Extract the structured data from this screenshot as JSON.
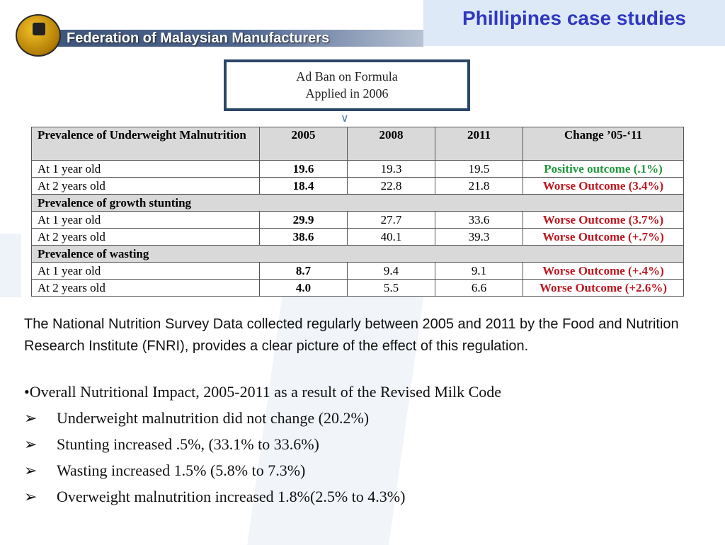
{
  "header": {
    "org_name": "Federation of Malaysian Manufacturers",
    "slide_title": "Phillipines case studies"
  },
  "callout": {
    "line1": "Ad Ban on Formula",
    "line2": "Applied in 2006"
  },
  "table": {
    "columns": [
      "Prevalence of Underweight Malnutrition",
      "2005",
      "2008",
      "2011",
      "Change ’05-‘11"
    ],
    "sections": [
      {
        "title": null,
        "rows": [
          {
            "label": "At 1 year old",
            "v2005": "19.6",
            "v2008": "19.3",
            "v2011": "19.5",
            "change": "Positive outcome (.1%)",
            "status": "positive"
          },
          {
            "label": "At 2 years old",
            "v2005": "18.4",
            "v2008": "22.8",
            "v2011": "21.8",
            "change": "Worse Outcome (3.4%)",
            "status": "negative"
          }
        ]
      },
      {
        "title": "Prevalence of growth stunting",
        "rows": [
          {
            "label": "At 1 year old",
            "v2005": "29.9",
            "v2008": "27.7",
            "v2011": "33.6",
            "change": "Worse Outcome (3.7%)",
            "status": "negative"
          },
          {
            "label": "At 2 years old",
            "v2005": "38.6",
            "v2008": "40.1",
            "v2011": "39.3",
            "change": "Worse Outcome (+.7%)",
            "status": "negative"
          }
        ]
      },
      {
        "title": "Prevalence of wasting",
        "rows": [
          {
            "label": "At 1 year old",
            "v2005": "8.7",
            "v2008": "9.4",
            "v2011": "9.1",
            "change": "Worse Outcome (+.4%)",
            "status": "negative"
          },
          {
            "label": "At 2 years old",
            "v2005": "4.0",
            "v2008": "5.5",
            "v2011": "6.6",
            "change": "Worse Outcome (+2.6%)",
            "status": "negative"
          }
        ]
      }
    ]
  },
  "body": {
    "paragraph": "The National Nutrition Survey Data collected regularly between 2005 and 2011 by the Food and Nutrition Research Institute (FNRI), provides a clear picture of the effect of this regulation.",
    "main_bullet": "•Overall Nutritional Impact, 2005-2011 as a result of the Revised Milk Code",
    "sub_marker": "➢",
    "sub_bullets": [
      "Underweight malnutrition did not change (20.2%)",
      "Stunting increased .5%, (33.1% to 33.6%)",
      "Wasting increased 1.5% (5.8% to 7.3%)",
      "Overweight malnutrition increased 1.8%(2.5% to 4.3%)"
    ]
  },
  "colors": {
    "positive": "#1f9a3c",
    "negative": "#c0161f",
    "title": "#2f37c4"
  }
}
